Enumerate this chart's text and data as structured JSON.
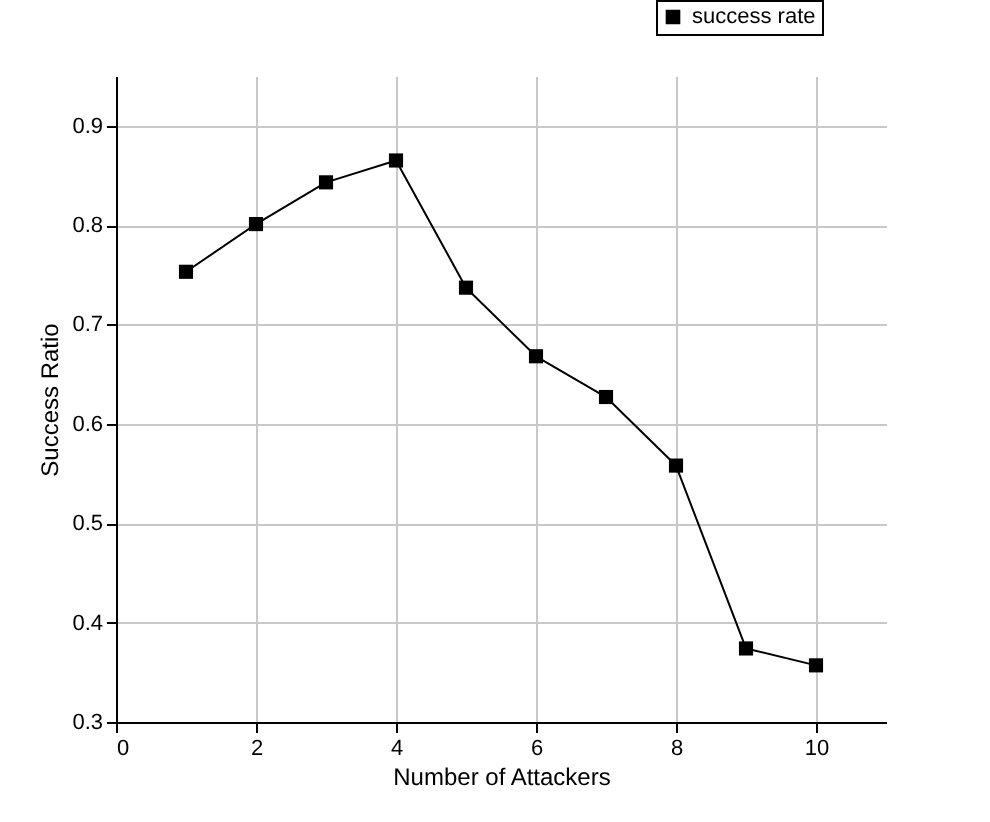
{
  "chart_data": {
    "type": "line",
    "xlabel": "Number of Attackers",
    "ylabel": "Success Ratio",
    "x": [
      1,
      2,
      3,
      4,
      5,
      6,
      7,
      8,
      9,
      10
    ],
    "series": [
      {
        "name": "success rate",
        "color": "#000000",
        "values": [
          0.753,
          0.801,
          0.843,
          0.865,
          0.737,
          0.668,
          0.627,
          0.558,
          0.374,
          0.357
        ]
      }
    ],
    "xlim": [
      0,
      11
    ],
    "xticks": [
      0,
      2,
      4,
      6,
      8,
      10
    ],
    "ylim": [
      0.3,
      0.95
    ],
    "yticks": [
      0.3,
      0.4,
      0.5,
      0.6,
      0.7,
      0.8,
      0.9
    ],
    "grid": true,
    "legend": "top right",
    "marker": "square",
    "line_style": "solid"
  }
}
